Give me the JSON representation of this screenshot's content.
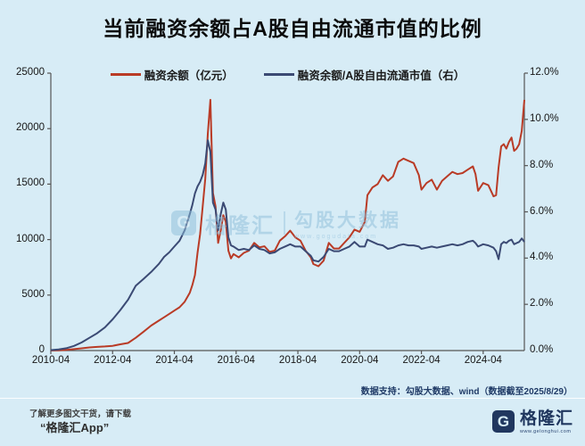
{
  "title": "当前融资余额占A股自由流通市值的比例",
  "colors": {
    "background": "#d7ecf6",
    "red_line": "#b93b26",
    "navy_line": "#3b4a74",
    "axis": "#555555",
    "footer_navy": "#1f3a66"
  },
  "legend": [
    {
      "label": "融资余额（亿元）",
      "color": "#b93b26"
    },
    {
      "label": "融资余额/A股自由流通市值（右）",
      "color": "#3b4a74"
    }
  ],
  "chart_data": {
    "type": "line",
    "title": "当前融资余额占A股自由流通市值的比例",
    "grid": false,
    "legend_position": "top",
    "x_range": [
      "2010-04",
      "2025-08"
    ],
    "x_ticks": [
      "2010-04",
      "2012-04",
      "2014-04",
      "2016-04",
      "2018-04",
      "2020-04",
      "2022-04",
      "2024-04"
    ],
    "left_axis": {
      "min": 0,
      "max": 25000,
      "ticks": [
        "25000",
        "20000",
        "15000",
        "10000",
        "5000",
        "0"
      ]
    },
    "right_axis": {
      "min": 0,
      "max": 12,
      "ticks": [
        "12.0%",
        "10.0%",
        "8.0%",
        "6.0%",
        "4.0%",
        "2.0%",
        "0.0%"
      ]
    },
    "x": [
      "2010-04",
      "2010-07",
      "2010-10",
      "2011-01",
      "2011-04",
      "2011-07",
      "2011-10",
      "2012-01",
      "2012-04",
      "2012-07",
      "2012-10",
      "2013-01",
      "2013-04",
      "2013-07",
      "2013-10",
      "2013-12",
      "2014-02",
      "2014-04",
      "2014-06",
      "2014-08",
      "2014-10",
      "2014-11",
      "2014-12",
      "2015-01",
      "2015-02",
      "2015-03",
      "2015-04",
      "2015-05",
      "2015-06",
      "2015-07",
      "2015-08",
      "2015-09",
      "2015-10",
      "2015-11",
      "2015-12",
      "2016-01",
      "2016-02",
      "2016-03",
      "2016-05",
      "2016-07",
      "2016-09",
      "2016-11",
      "2017-01",
      "2017-03",
      "2017-05",
      "2017-07",
      "2017-09",
      "2017-11",
      "2018-01",
      "2018-03",
      "2018-05",
      "2018-07",
      "2018-09",
      "2018-10",
      "2018-12",
      "2019-02",
      "2019-04",
      "2019-06",
      "2019-08",
      "2019-10",
      "2019-12",
      "2020-02",
      "2020-04",
      "2020-06",
      "2020-07",
      "2020-09",
      "2020-11",
      "2021-01",
      "2021-03",
      "2021-05",
      "2021-07",
      "2021-09",
      "2021-11",
      "2022-01",
      "2022-03",
      "2022-04",
      "2022-06",
      "2022-08",
      "2022-10",
      "2022-12",
      "2023-02",
      "2023-04",
      "2023-06",
      "2023-08",
      "2023-10",
      "2023-12",
      "2024-01",
      "2024-02",
      "2024-04",
      "2024-06",
      "2024-08",
      "2024-09",
      "2024-10",
      "2024-11",
      "2024-12",
      "2025-01",
      "2025-02",
      "2025-03",
      "2025-04",
      "2025-05",
      "2025-06",
      "2025-07",
      "2025-08"
    ],
    "series": [
      {
        "name": "融资余额（亿元）",
        "axis": "left",
        "color": "#b93b26",
        "values": [
          8,
          25,
          60,
          130,
          200,
          280,
          330,
          370,
          430,
          560,
          680,
          1150,
          1700,
          2250,
          2700,
          3000,
          3300,
          3600,
          3900,
          4400,
          5200,
          5900,
          6800,
          8800,
          10500,
          13000,
          15500,
          19500,
          22600,
          14200,
          13000,
          9700,
          10800,
          12200,
          11600,
          9000,
          8300,
          8700,
          8400,
          8800,
          9000,
          9700,
          9300,
          9400,
          8900,
          9000,
          9900,
          10300,
          10800,
          10200,
          9900,
          9000,
          8400,
          7800,
          7600,
          8100,
          9700,
          9200,
          9200,
          9700,
          10200,
          10900,
          10700,
          11600,
          14000,
          14700,
          15000,
          15800,
          15300,
          15700,
          17000,
          17300,
          17100,
          16900,
          15800,
          14500,
          15100,
          15400,
          14500,
          15300,
          15700,
          16100,
          15900,
          16000,
          16300,
          16600,
          15900,
          14400,
          15100,
          14900,
          13900,
          14000,
          16500,
          18400,
          18600,
          18200,
          18800,
          19200,
          18000,
          18200,
          18600,
          19800,
          22600
        ]
      },
      {
        "name": "融资余额/A股自由流通市值（右）",
        "axis": "right",
        "color": "#3b4a74",
        "values": [
          0.02,
          0.05,
          0.1,
          0.2,
          0.35,
          0.55,
          0.75,
          1.0,
          1.35,
          1.75,
          2.2,
          2.8,
          3.1,
          3.4,
          3.75,
          4.05,
          4.25,
          4.5,
          4.75,
          5.2,
          5.9,
          6.3,
          6.8,
          7.1,
          7.3,
          7.6,
          8.1,
          9.1,
          8.6,
          6.4,
          6.1,
          5.2,
          5.9,
          6.4,
          6.1,
          4.9,
          4.55,
          4.5,
          4.35,
          4.4,
          4.35,
          4.55,
          4.4,
          4.35,
          4.2,
          4.25,
          4.4,
          4.5,
          4.6,
          4.5,
          4.5,
          4.3,
          4.1,
          3.9,
          3.85,
          4.05,
          4.4,
          4.3,
          4.3,
          4.4,
          4.5,
          4.7,
          4.5,
          4.5,
          4.8,
          4.7,
          4.6,
          4.55,
          4.4,
          4.45,
          4.55,
          4.6,
          4.55,
          4.55,
          4.5,
          4.4,
          4.45,
          4.5,
          4.45,
          4.5,
          4.55,
          4.6,
          4.55,
          4.6,
          4.7,
          4.75,
          4.65,
          4.5,
          4.6,
          4.55,
          4.45,
          4.3,
          3.95,
          4.6,
          4.7,
          4.65,
          4.75,
          4.8,
          4.6,
          4.65,
          4.7,
          4.85,
          4.7
        ]
      }
    ]
  },
  "watermark": {
    "logo_letter": "G",
    "logo_text": "格隆汇",
    "name": "勾股大数据",
    "url": "www.gogudata.com"
  },
  "footer": {
    "data_support": "数据支持：勾股大数据、wind（数据截至2025/8/29）",
    "promo_line1": "了解更多图文干货，请下载",
    "promo_line2": "“格隆汇App”",
    "brand_letter": "G",
    "brand_name": "格隆汇",
    "brand_url": "www.gelonghui.com"
  }
}
